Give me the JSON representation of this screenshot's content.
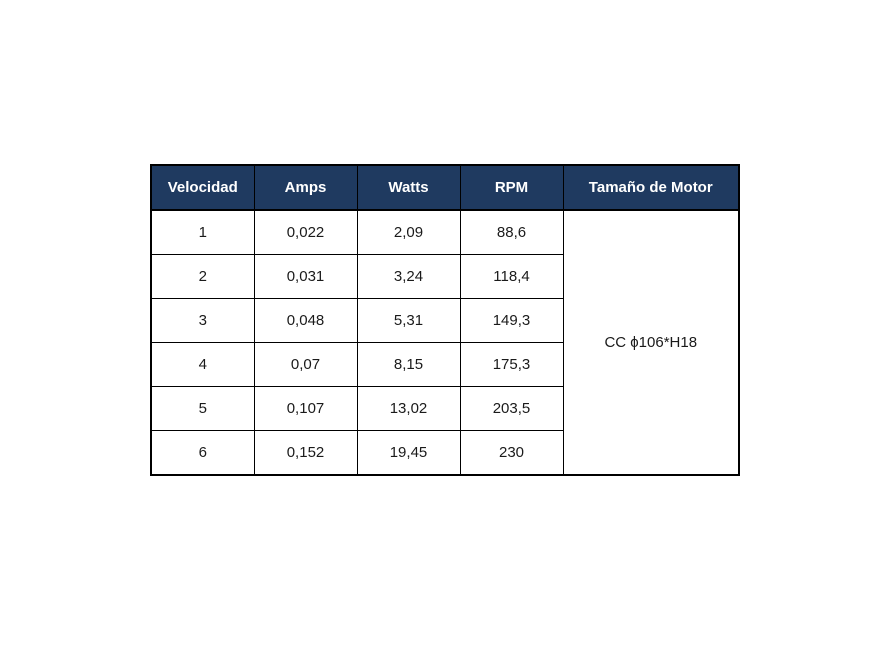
{
  "page": {
    "background_color": "#ffffff"
  },
  "chart_data": {
    "type": "table",
    "title": "",
    "columns": [
      "Velocidad",
      "Amps",
      "Watts",
      "RPM",
      "Tamaño de Motor"
    ],
    "rows": [
      [
        "1",
        "0,022",
        "2,09",
        "88,6",
        "CC ϕ106*H18"
      ],
      [
        "2",
        "0,031",
        "3,24",
        "118,4",
        "CC ϕ106*H18"
      ],
      [
        "3",
        "0,048",
        "5,31",
        "149,3",
        "CC ϕ106*H18"
      ],
      [
        "4",
        "0,07",
        "8,15",
        "175,3",
        "CC ϕ106*H18"
      ],
      [
        "5",
        "0,107",
        "13,02",
        "203,5",
        "CC ϕ106*H18"
      ],
      [
        "6",
        "0,152",
        "19,45",
        "230",
        "CC ϕ106*H18"
      ]
    ],
    "notes": "Tamaño de Motor is a single merged cell spanning all 6 rows"
  },
  "table": {
    "headers": {
      "velocidad": "Velocidad",
      "amps": "Amps",
      "watts": "Watts",
      "rpm": "RPM",
      "motor": "Tamaño de Motor"
    },
    "rows": [
      [
        "1",
        "0,022",
        "2,09",
        "88,6"
      ],
      [
        "2",
        "0,031",
        "3,24",
        "118,4"
      ],
      [
        "3",
        "0,048",
        "5,31",
        "149,3"
      ],
      [
        "4",
        "0,07",
        "8,15",
        "175,3"
      ],
      [
        "5",
        "0,107",
        "13,02",
        "203,5"
      ],
      [
        "6",
        "0,152",
        "19,45",
        "230"
      ]
    ],
    "motor_size": "CC ϕ106*H18",
    "colors": {
      "header_background": "#1f3a60",
      "header_text": "#ffffff",
      "body_text": "#1a1a1a",
      "border": "#000000"
    }
  }
}
